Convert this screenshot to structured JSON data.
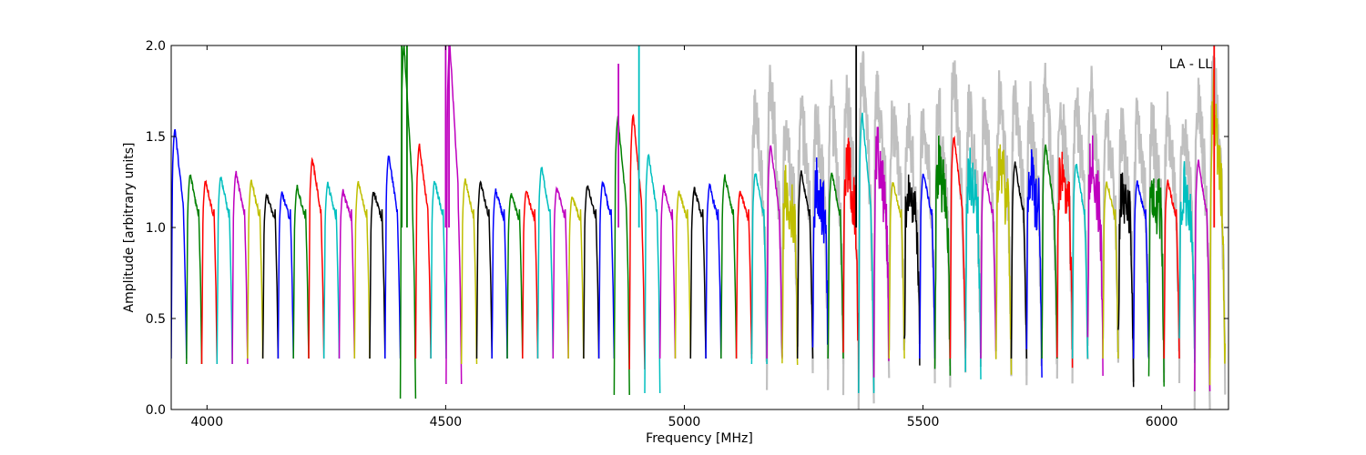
{
  "chart_data": {
    "type": "line",
    "title": "",
    "xlabel": "Frequency [MHz]",
    "ylabel": "Amplitude [arbitrary units]",
    "annotation": "LA - LL",
    "xlim": [
      3925,
      6140
    ],
    "ylim": [
      0.0,
      2.0
    ],
    "xticks": [
      4000,
      4500,
      5000,
      5500,
      6000
    ],
    "xtick_labels": [
      "4000",
      "4500",
      "5000",
      "5500",
      "6000"
    ],
    "yticks": [
      0.0,
      0.5,
      1.0,
      1.5,
      2.0
    ],
    "ytick_labels": [
      "0.0",
      "0.5",
      "1.0",
      "1.5",
      "2.0"
    ],
    "grid": false,
    "channel_width_mhz": 32,
    "color_cycle": [
      "#0000ff",
      "#008000",
      "#ff0000",
      "#00bfbf",
      "#bf00bf",
      "#bfbf00",
      "#000000"
    ],
    "background_color": "#c0c0c0",
    "background_range": [
      5150,
      6140
    ],
    "channel_starts": [
      3925,
      3957,
      3989,
      4021,
      4053,
      4085,
      4117,
      4149,
      4181,
      4213,
      4245,
      4277,
      4309,
      4341,
      4373,
      4405,
      4437,
      4469,
      4501,
      4533,
      4565,
      4597,
      4629,
      4661,
      4693,
      4725,
      4757,
      4789,
      4821,
      4853,
      4885,
      4917,
      4949,
      4981,
      5013,
      5045,
      5077,
      5109,
      5141,
      5173,
      5205,
      5237,
      5269,
      5301,
      5333,
      5365,
      5397,
      5429,
      5461,
      5493,
      5525,
      5557,
      5589,
      5621,
      5653,
      5685,
      5717,
      5749,
      5781,
      5813,
      5845,
      5877,
      5909,
      5941,
      5973,
      6005,
      6037,
      6069,
      6101
    ],
    "channel_peaks": [
      1.54,
      1.29,
      1.26,
      1.28,
      1.3,
      1.26,
      1.18,
      1.19,
      1.22,
      1.38,
      1.24,
      1.2,
      1.25,
      1.2,
      1.4,
      2.0,
      1.45,
      1.26,
      2.0,
      1.26,
      1.25,
      1.2,
      1.18,
      1.2,
      1.33,
      1.22,
      1.17,
      1.23,
      1.25,
      1.6,
      1.62,
      1.4,
      1.22,
      1.2,
      1.21,
      1.23,
      1.28,
      1.2,
      1.3,
      1.45,
      1.2,
      1.3,
      1.26,
      1.3,
      1.4,
      1.62,
      1.42,
      1.25,
      1.25,
      1.3,
      1.35,
      1.5,
      1.32,
      1.3,
      1.4,
      1.35,
      1.3,
      1.45,
      1.32,
      1.35,
      1.4,
      1.25,
      1.2,
      1.25,
      1.23,
      1.25,
      1.22,
      1.36,
      1.7
    ],
    "channel_dips": [
      0.28,
      0.25,
      0.25,
      0.25,
      0.25,
      0.28,
      0.28,
      0.28,
      0.28,
      0.28,
      0.28,
      0.28,
      0.28,
      0.28,
      0.28,
      0.06,
      0.28,
      0.28,
      0.14,
      0.25,
      0.28,
      0.28,
      0.28,
      0.28,
      0.28,
      0.28,
      0.28,
      0.28,
      0.28,
      0.08,
      0.22,
      0.09,
      0.28,
      0.28,
      0.28,
      0.28,
      0.28,
      0.28,
      0.25,
      0.28,
      0.28,
      0.28,
      0.28,
      0.28,
      0.25,
      0.09,
      0.25,
      0.28,
      0.28,
      0.28,
      0.25,
      0.28,
      0.28,
      0.28,
      0.28,
      0.28,
      0.28,
      0.28,
      0.28,
      0.28,
      0.28,
      0.28,
      0.28,
      0.28,
      0.28,
      0.28,
      0.22,
      0.1,
      0.2
    ],
    "spikes": [
      {
        "x": 4408,
        "y": 2.0,
        "color": "#008000"
      },
      {
        "x": 4419,
        "y": 2.0,
        "color": "#008000"
      },
      {
        "x": 4500,
        "y": 2.0,
        "color": "#bf00bf"
      },
      {
        "x": 4507,
        "y": 2.0,
        "color": "#bf00bf"
      },
      {
        "x": 4862,
        "y": 1.9,
        "color": "#bf00bf"
      },
      {
        "x": 4905,
        "y": 2.0,
        "color": "#00bfbf"
      },
      {
        "x": 5360,
        "y": 2.0,
        "color": "#000000"
      },
      {
        "x": 6110,
        "y": 2.0,
        "color": "#ff0000"
      }
    ]
  }
}
